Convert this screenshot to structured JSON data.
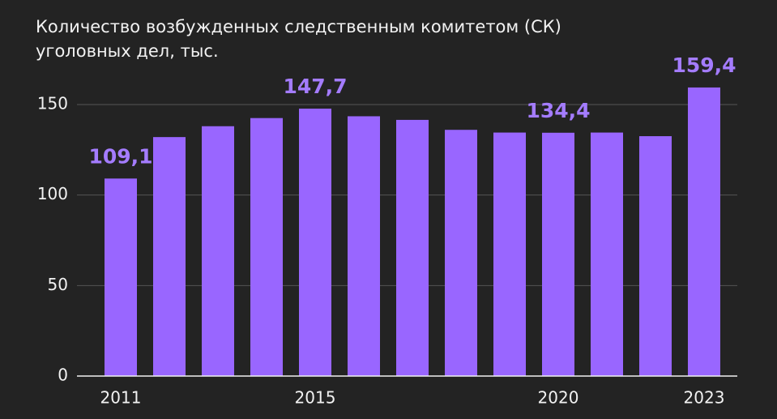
{
  "chart_data": {
    "type": "bar",
    "title": "Количество возбужденных следственным комитетом (СК) уголовных дел, тыс.",
    "categories": [
      "2011",
      null,
      null,
      null,
      "2015",
      null,
      null,
      null,
      null,
      "2020",
      null,
      null,
      "2023"
    ],
    "values": [
      109.1,
      132,
      138,
      142.5,
      147.7,
      143.5,
      141.5,
      136,
      134.5,
      134.4,
      134.5,
      132.5,
      159.4
    ],
    "value_labels": [
      "109,1",
      null,
      null,
      null,
      "147,7",
      null,
      null,
      null,
      null,
      "134,4",
      null,
      null,
      "159,4"
    ],
    "color": "#9966ff",
    "label_color": "#a47cff",
    "ylim": [
      0,
      160
    ],
    "yticks": [
      0,
      50,
      100,
      150
    ],
    "grid": true
  }
}
